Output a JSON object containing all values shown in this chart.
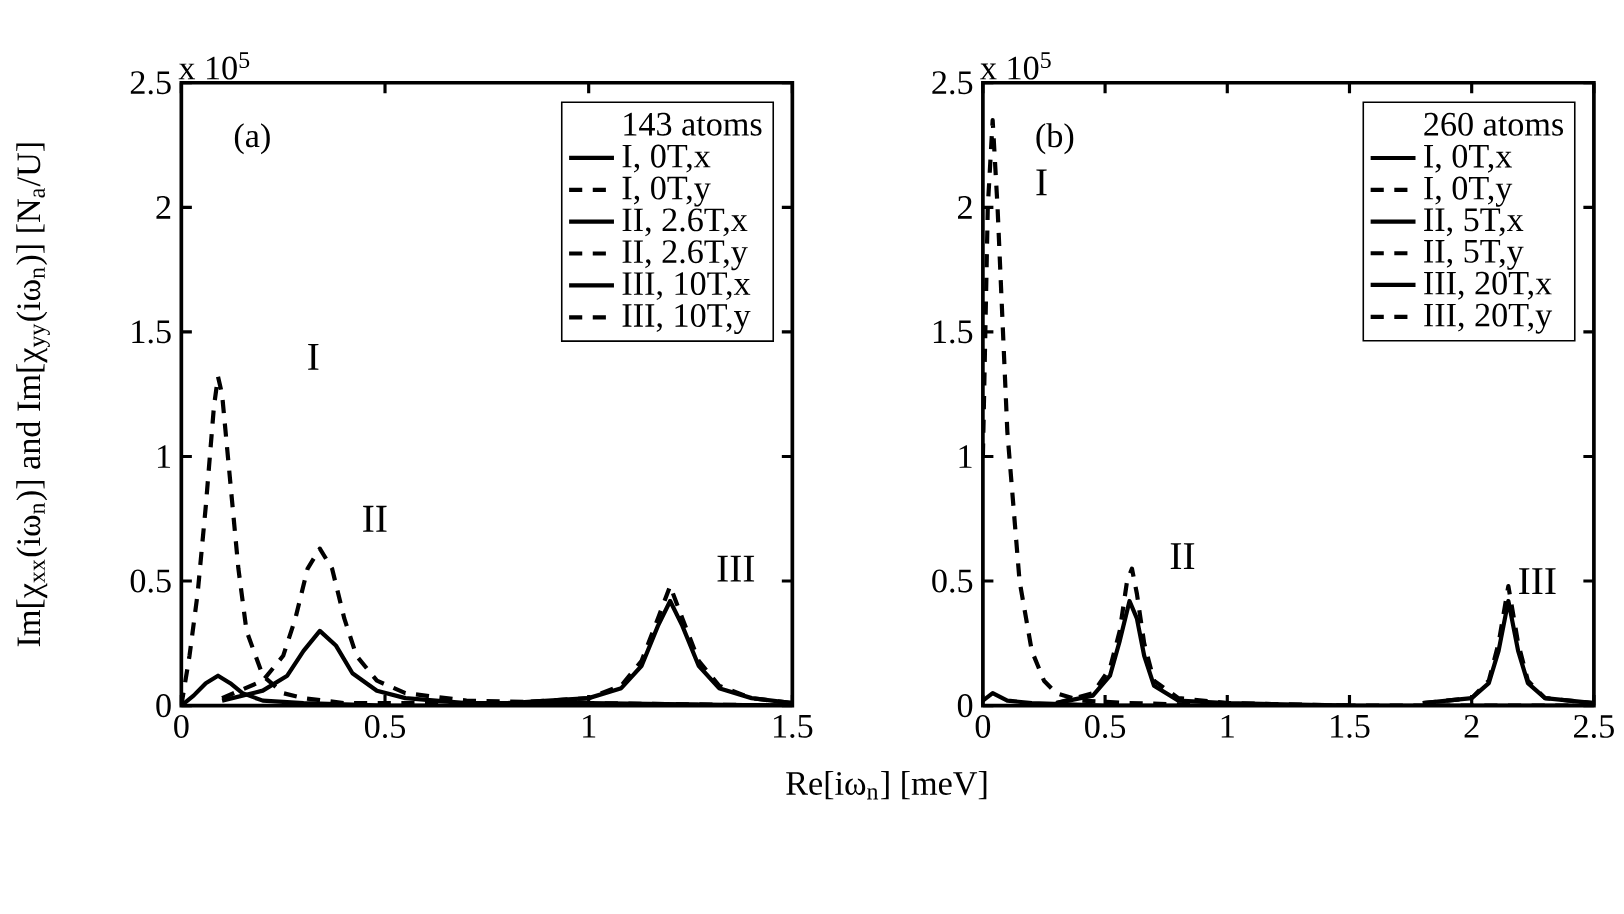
{
  "chart_data": [
    {
      "type": "line",
      "xlabel": "Re[iω$_{n}$] [meV]",
      "ylabel": "Im[χ$_{xx}$(iω$_{n}$)] and Im[χ$_{yy}$(iω$_{n}$)]  [N$_{a}$/U]",
      "legend_title": "143 atoms",
      "legend": "top right",
      "xlim": [
        0,
        1.5
      ],
      "ylim": [
        0,
        2.5
      ],
      "xticks": [
        0,
        0.5,
        1,
        1.5
      ],
      "yticks": [
        0,
        0.5,
        1,
        1.5,
        2,
        2.5
      ],
      "grid": false,
      "annotations": [
        "x 10$^{5}$",
        "(a)",
        "I",
        "II",
        "III"
      ],
      "series": [
        {
          "name": "I, 0T,x",
          "color": "#000000",
          "line_style": "solid",
          "x": [
            0,
            0.03,
            0.06,
            0.09,
            0.12,
            0.15,
            0.2,
            0.3,
            0.5,
            1.5
          ],
          "values": [
            0,
            0.04,
            0.09,
            0.12,
            0.09,
            0.05,
            0.02,
            0.01,
            0,
            0
          ]
        },
        {
          "name": "I, 0T,y",
          "color": "#000000",
          "line_style": "dashed",
          "x": [
            0,
            0.02,
            0.04,
            0.06,
            0.08,
            0.09,
            0.1,
            0.12,
            0.14,
            0.16,
            0.2,
            0.25,
            0.3,
            0.4,
            0.6,
            1.5
          ],
          "values": [
            0,
            0.2,
            0.45,
            0.8,
            1.2,
            1.32,
            1.25,
            0.9,
            0.55,
            0.3,
            0.12,
            0.05,
            0.03,
            0.01,
            0.01,
            0
          ]
        },
        {
          "name": "II, 2.6T,x",
          "color": "#000000",
          "line_style": "solid",
          "x": [
            0.1,
            0.2,
            0.26,
            0.3,
            0.34,
            0.38,
            0.42,
            0.48,
            0.55,
            0.7,
            1.0,
            1.5
          ],
          "values": [
            0.02,
            0.06,
            0.12,
            0.22,
            0.3,
            0.24,
            0.13,
            0.06,
            0.03,
            0.01,
            0.01,
            0
          ]
        },
        {
          "name": "II, 2.6T,y",
          "color": "#000000",
          "line_style": "dashed",
          "x": [
            0.1,
            0.2,
            0.25,
            0.28,
            0.31,
            0.34,
            0.37,
            0.4,
            0.43,
            0.48,
            0.55,
            0.7,
            1.0,
            1.5
          ],
          "values": [
            0.03,
            0.1,
            0.2,
            0.35,
            0.55,
            0.63,
            0.55,
            0.35,
            0.2,
            0.1,
            0.05,
            0.02,
            0.01,
            0
          ]
        },
        {
          "name": "III, 10T,x",
          "color": "#000000",
          "line_style": "solid",
          "x": [
            0.8,
            1.0,
            1.08,
            1.13,
            1.17,
            1.2,
            1.23,
            1.27,
            1.32,
            1.4,
            1.5
          ],
          "values": [
            0.01,
            0.03,
            0.07,
            0.16,
            0.32,
            0.42,
            0.32,
            0.16,
            0.07,
            0.03,
            0.01
          ]
        },
        {
          "name": "III, 10T,y",
          "color": "#000000",
          "line_style": "dashed",
          "x": [
            0.8,
            1.0,
            1.08,
            1.13,
            1.17,
            1.2,
            1.23,
            1.27,
            1.32,
            1.4,
            1.5
          ],
          "values": [
            0.01,
            0.03,
            0.08,
            0.18,
            0.35,
            0.48,
            0.35,
            0.18,
            0.08,
            0.03,
            0.01
          ]
        }
      ]
    },
    {
      "type": "line",
      "legend_title": "260 atoms",
      "legend": "top right",
      "xlim": [
        0,
        2.5
      ],
      "ylim": [
        0,
        2.5
      ],
      "xticks": [
        0,
        0.5,
        1,
        1.5,
        2,
        2.5
      ],
      "yticks": [
        0,
        0.5,
        1,
        1.5,
        2,
        2.5
      ],
      "grid": false,
      "annotations": [
        "x 10$^{5}$",
        "(b)",
        "I",
        "II",
        "III"
      ],
      "series": [
        {
          "name": "I, 0T,x",
          "color": "#000000",
          "line_style": "solid",
          "x": [
            0,
            0.04,
            0.1,
            0.2,
            0.5,
            2.5
          ],
          "values": [
            0.02,
            0.05,
            0.02,
            0.01,
            0,
            0
          ]
        },
        {
          "name": "I, 0T,y",
          "color": "#000000",
          "line_style": "dashed",
          "x": [
            0,
            0.02,
            0.04,
            0.06,
            0.1,
            0.15,
            0.2,
            0.25,
            0.3,
            0.4,
            0.6,
            1.0,
            2.5
          ],
          "values": [
            1.0,
            2.0,
            2.35,
            2.0,
            1.1,
            0.5,
            0.22,
            0.1,
            0.05,
            0.02,
            0.01,
            0,
            0
          ]
        },
        {
          "name": "II, 5T,x",
          "color": "#000000",
          "line_style": "solid",
          "x": [
            0.3,
            0.45,
            0.52,
            0.56,
            0.6,
            0.63,
            0.66,
            0.7,
            0.8,
            1.0,
            1.5
          ],
          "values": [
            0.01,
            0.04,
            0.12,
            0.26,
            0.42,
            0.35,
            0.2,
            0.08,
            0.02,
            0.01,
            0
          ]
        },
        {
          "name": "II, 5T,y",
          "color": "#000000",
          "line_style": "dashed",
          "x": [
            0.3,
            0.45,
            0.52,
            0.56,
            0.59,
            0.61,
            0.63,
            0.66,
            0.7,
            0.8,
            1.0,
            1.5
          ],
          "values": [
            0.01,
            0.05,
            0.15,
            0.3,
            0.5,
            0.55,
            0.45,
            0.25,
            0.1,
            0.03,
            0.01,
            0
          ]
        },
        {
          "name": "III, 20T,x",
          "color": "#000000",
          "line_style": "solid",
          "x": [
            1.8,
            2.0,
            2.07,
            2.11,
            2.15,
            2.19,
            2.23,
            2.3,
            2.5
          ],
          "values": [
            0.01,
            0.03,
            0.09,
            0.22,
            0.42,
            0.22,
            0.09,
            0.03,
            0.01
          ]
        },
        {
          "name": "III, 20T,y",
          "color": "#000000",
          "line_style": "dashed",
          "x": [
            1.8,
            2.0,
            2.07,
            2.11,
            2.15,
            2.19,
            2.23,
            2.3,
            2.5
          ],
          "values": [
            0.01,
            0.03,
            0.1,
            0.25,
            0.48,
            0.25,
            0.1,
            0.03,
            0.01
          ]
        }
      ]
    }
  ]
}
